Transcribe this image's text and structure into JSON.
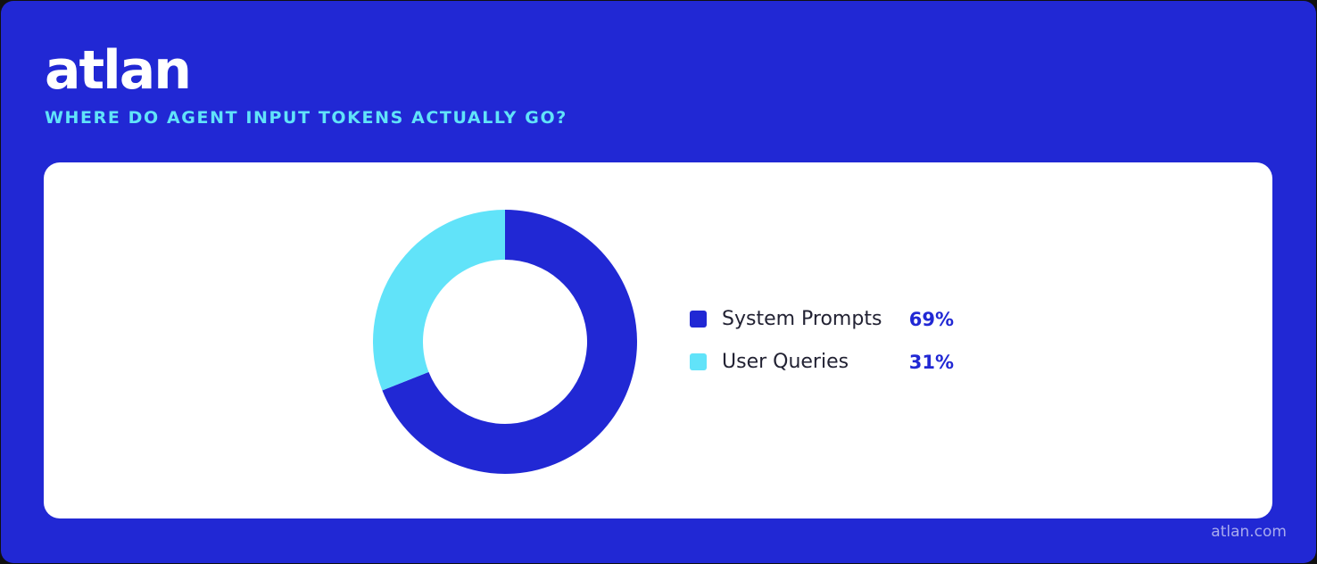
{
  "brand": {
    "logo_text": "atlan",
    "site": "atlan.com",
    "colors": {
      "background": "#2128D4",
      "accent": "#61E3F9",
      "card": "#FFFFFF"
    }
  },
  "chart_data": {
    "type": "pie",
    "variant": "donut",
    "title": "WHERE DO AGENT INPUT TOKENS ACTUALLY GO?",
    "legend_position": "right",
    "slices": [
      {
        "label": "System Prompts",
        "value": 69,
        "display": "69%",
        "color": "#2128D4"
      },
      {
        "label": "User Queries",
        "value": 31,
        "display": "31%",
        "color": "#61E3F9"
      }
    ]
  }
}
